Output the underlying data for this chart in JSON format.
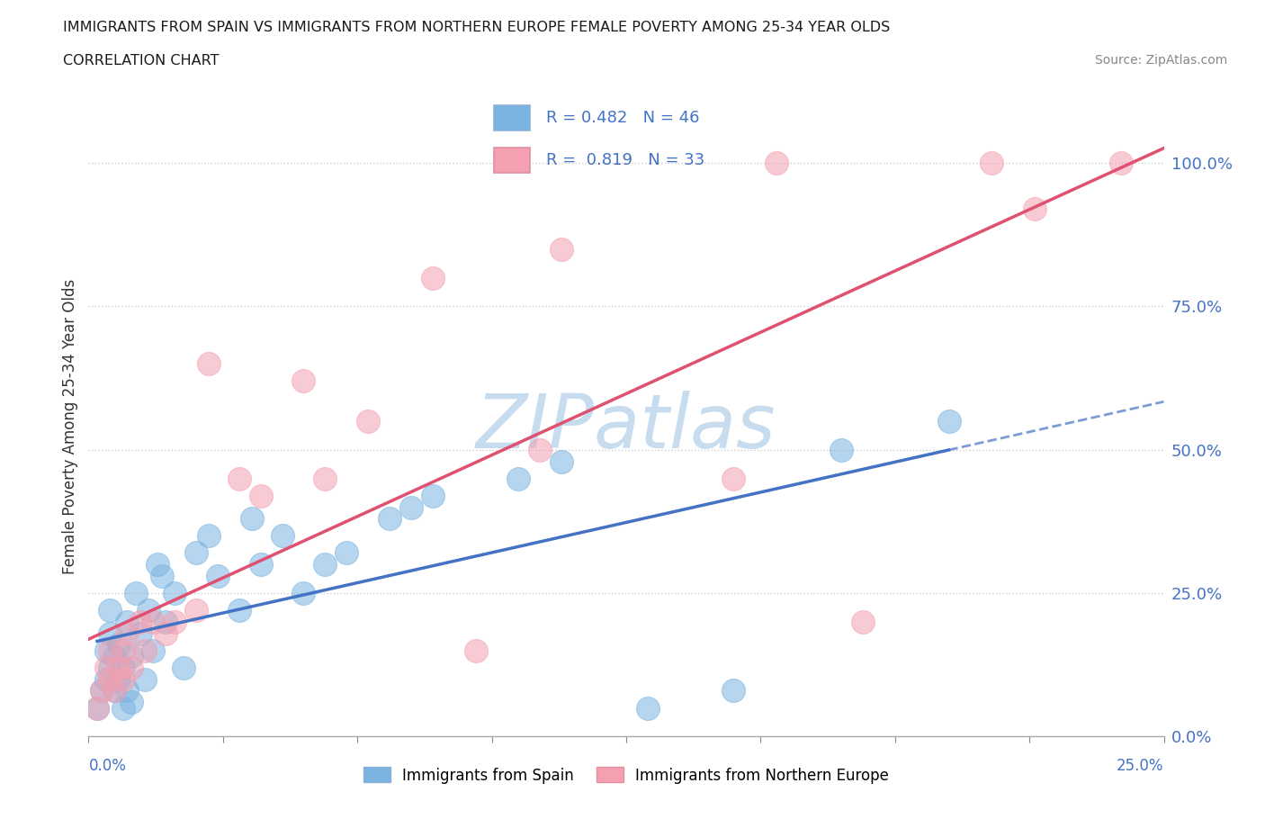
{
  "title": "IMMIGRANTS FROM SPAIN VS IMMIGRANTS FROM NORTHERN EUROPE FEMALE POVERTY AMONG 25-34 YEAR OLDS",
  "subtitle": "CORRELATION CHART",
  "source": "Source: ZipAtlas.com",
  "ylabel": "Female Poverty Among 25-34 Year Olds",
  "xlim": [
    0,
    0.25
  ],
  "ylim": [
    0,
    1.08
  ],
  "R_spain": 0.482,
  "N_spain": 46,
  "R_northern": 0.819,
  "N_northern": 33,
  "color_spain": "#7ab3e0",
  "color_northern": "#f4a0b0",
  "color_line_spain": "#4472c4",
  "color_line_northern": "#e05070",
  "color_text_blue": "#4472c4",
  "watermark_color": "#c8dcf0",
  "legend_label_spain": "Immigrants from Spain",
  "legend_label_northern": "Immigrants from Northern Europe",
  "spain_x": [
    0.002,
    0.003,
    0.004,
    0.004,
    0.005,
    0.005,
    0.005,
    0.006,
    0.006,
    0.007,
    0.007,
    0.008,
    0.008,
    0.009,
    0.009,
    0.01,
    0.01,
    0.011,
    0.012,
    0.013,
    0.014,
    0.015,
    0.016,
    0.017,
    0.018,
    0.02,
    0.022,
    0.025,
    0.028,
    0.03,
    0.035,
    0.038,
    0.04,
    0.045,
    0.05,
    0.055,
    0.06,
    0.07,
    0.075,
    0.08,
    0.1,
    0.11,
    0.13,
    0.15,
    0.175,
    0.2
  ],
  "spain_y": [
    0.05,
    0.08,
    0.1,
    0.15,
    0.12,
    0.18,
    0.22,
    0.08,
    0.14,
    0.1,
    0.16,
    0.05,
    0.12,
    0.08,
    0.2,
    0.06,
    0.14,
    0.25,
    0.18,
    0.1,
    0.22,
    0.15,
    0.3,
    0.28,
    0.2,
    0.25,
    0.12,
    0.32,
    0.35,
    0.28,
    0.22,
    0.38,
    0.3,
    0.35,
    0.25,
    0.3,
    0.32,
    0.38,
    0.4,
    0.42,
    0.45,
    0.48,
    0.05,
    0.08,
    0.5,
    0.55
  ],
  "northern_x": [
    0.002,
    0.003,
    0.004,
    0.005,
    0.005,
    0.006,
    0.007,
    0.008,
    0.008,
    0.009,
    0.01,
    0.012,
    0.013,
    0.015,
    0.018,
    0.02,
    0.025,
    0.028,
    0.035,
    0.04,
    0.05,
    0.055,
    0.065,
    0.08,
    0.09,
    0.105,
    0.11,
    0.15,
    0.16,
    0.18,
    0.21,
    0.22,
    0.24
  ],
  "northern_y": [
    0.05,
    0.08,
    0.12,
    0.1,
    0.15,
    0.08,
    0.12,
    0.15,
    0.1,
    0.18,
    0.12,
    0.2,
    0.15,
    0.2,
    0.18,
    0.2,
    0.22,
    0.65,
    0.45,
    0.42,
    0.62,
    0.45,
    0.55,
    0.8,
    0.15,
    0.5,
    0.85,
    0.45,
    1.0,
    0.2,
    1.0,
    0.92,
    1.0
  ]
}
